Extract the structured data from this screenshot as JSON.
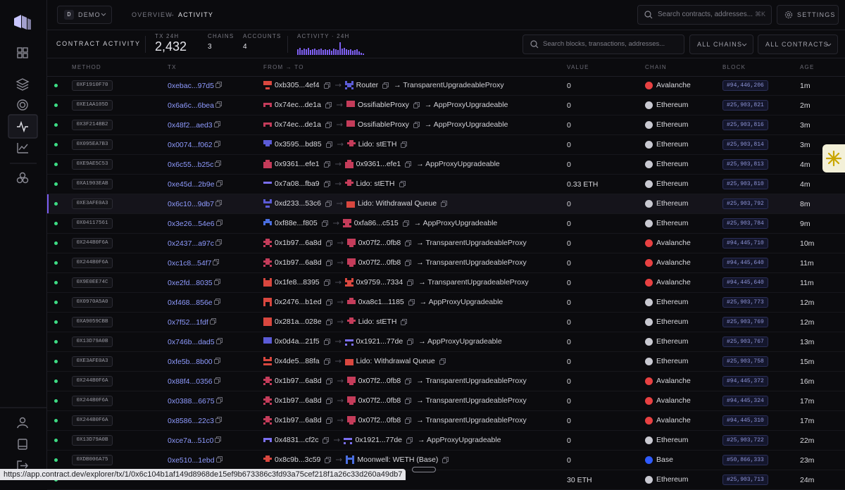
{
  "topbar": {
    "workspace_initial": "D",
    "workspace": "DEMO",
    "breadcrumb_parent": "OVERVIEW",
    "breadcrumb_separator": "→",
    "breadcrumb_current": "ACTIVITY",
    "search_placeholder": "Search contracts, addresses...",
    "shortcut": "⌘K",
    "settings": "SETTINGS"
  },
  "summary": {
    "title": "CONTRACT ACTIVITY",
    "stats": [
      {
        "label": "TX 24H",
        "value": "2,432"
      },
      {
        "label": "CHAINS",
        "value": "3"
      },
      {
        "label": "ACCOUNTS",
        "value": "4"
      }
    ],
    "activity_label": "ACTIVITY · 24H",
    "search_placeholder": "Search blocks, transactions, addresses...",
    "filters": [
      "ALL CHAINS",
      "ALL CONTRACTS"
    ]
  },
  "table": {
    "columns": [
      "METHOD",
      "TX",
      "FROM → TO",
      "VALUE",
      "CHAIN",
      "BLOCK",
      "AGE"
    ],
    "rows": [
      {
        "method": "0XF1910F70",
        "tx": "0xebac...97d5",
        "from": "0xb305...4ef4",
        "to": "Router",
        "to_note": "→ TransparentUpgradeableProxy",
        "value": "0",
        "chain": "Avalanche",
        "chain_color": "#e84142",
        "block": "#94,446,206",
        "age": "1m"
      },
      {
        "method": "0XE1AA105D",
        "tx": "0x6a6c...6bea",
        "from": "0x74ec...de1a",
        "to": "OssifiableProxy",
        "to_note": "→ AppProxyUpgradeable",
        "value": "0",
        "chain": "Ethereum",
        "chain_color": "#c9c9d1",
        "block": "#25,903,821",
        "age": "2m"
      },
      {
        "method": "0X3F214BB2",
        "tx": "0x48f2...aed3",
        "from": "0x74ec...de1a",
        "to": "OssifiableProxy",
        "to_note": "→ AppProxyUpgradeable",
        "value": "0",
        "chain": "Ethereum",
        "chain_color": "#c9c9d1",
        "block": "#25,903,816",
        "age": "3m"
      },
      {
        "method": "0X095EA7B3",
        "tx": "0x0074...f062",
        "from": "0x3595...bd85",
        "to": "Lido: stETH",
        "value": "0",
        "chain": "Ethereum",
        "chain_color": "#c9c9d1",
        "block": "#25,903,814",
        "age": "3m"
      },
      {
        "method": "0XE9AE5C53",
        "tx": "0x6c55...b25c",
        "from": "0x9361...efe1",
        "to": "0x9361...efe1",
        "to_note": "→ AppProxyUpgradeable",
        "value": "0",
        "chain": "Ethereum",
        "chain_color": "#c9c9d1",
        "block": "#25,903,813",
        "age": "4m"
      },
      {
        "method": "0XA1903EAB",
        "tx": "0xe45d...2b9e",
        "from": "0x7a08...fba9",
        "to": "Lido: stETH",
        "value": "0.33 ETH",
        "chain": "Ethereum",
        "chain_color": "#c9c9d1",
        "block": "#25,903,810",
        "age": "4m"
      },
      {
        "method": "0XE3AFE0A3",
        "tx": "0x6c10...9db7",
        "from": "0xd233...53c6",
        "to": "Lido: Withdrawal Queue",
        "value": "0",
        "chain": "Ethereum",
        "chain_color": "#c9c9d1",
        "block": "#25,903,792",
        "age": "8m",
        "selected": true
      },
      {
        "method": "0X04117561",
        "tx": "0x3e26...54e6",
        "from": "0xf88e...f805",
        "to": "0xfa86...c515",
        "to_note": "→ AppProxyUpgradeable",
        "value": "0",
        "chain": "Ethereum",
        "chain_color": "#c9c9d1",
        "block": "#25,903,784",
        "age": "9m"
      },
      {
        "method": "0X244B0F6A",
        "tx": "0x2437...a97c",
        "from": "0x1b97...6a8d",
        "to": "0x07f2...0fb8",
        "to_note": "→ TransparentUpgradeableProxy",
        "value": "0",
        "chain": "Avalanche",
        "chain_color": "#e84142",
        "block": "#94,445,710",
        "age": "10m"
      },
      {
        "method": "0X244B0F6A",
        "tx": "0xc1c8...54f7",
        "from": "0x1b97...6a8d",
        "to": "0x07f2...0fb8",
        "to_note": "→ TransparentUpgradeableProxy",
        "value": "0",
        "chain": "Avalanche",
        "chain_color": "#e84142",
        "block": "#94,445,640",
        "age": "11m"
      },
      {
        "method": "0X9E0EE74C",
        "tx": "0xe2fd...8035",
        "from": "0x1fe8...8395",
        "to": "0x9759...7334",
        "to_note": "→ TransparentUpgradeableProxy",
        "value": "0",
        "chain": "Avalanche",
        "chain_color": "#e84142",
        "block": "#94,445,640",
        "age": "11m"
      },
      {
        "method": "0X0970A5A0",
        "tx": "0xf468...856e",
        "from": "0x2476...b1ed",
        "to": "0xa8c1...1185",
        "to_note": "→ AppProxyUpgradeable",
        "value": "0",
        "chain": "Ethereum",
        "chain_color": "#c9c9d1",
        "block": "#25,903,773",
        "age": "12m"
      },
      {
        "method": "0XA9059CBB",
        "tx": "0x7f52...1fdf",
        "from": "0x281a...028e",
        "to": "Lido: stETH",
        "value": "0",
        "chain": "Ethereum",
        "chain_color": "#c9c9d1",
        "block": "#25,903,769",
        "age": "12m"
      },
      {
        "method": "0X13D79A0B",
        "tx": "0x746b...dad5",
        "from": "0x0d4a...21f5",
        "to": "0x1921...77de",
        "to_note": "→ AppProxyUpgradeable",
        "value": "0",
        "chain": "Ethereum",
        "chain_color": "#c9c9d1",
        "block": "#25,903,767",
        "age": "13m"
      },
      {
        "method": "0XE3AFE0A3",
        "tx": "0xfe5b...8b00",
        "from": "0x4de5...88fa",
        "to": "Lido: Withdrawal Queue",
        "value": "0",
        "chain": "Ethereum",
        "chain_color": "#c9c9d1",
        "block": "#25,903,758",
        "age": "15m"
      },
      {
        "method": "0X244B0F6A",
        "tx": "0x88f4...0356",
        "from": "0x1b97...6a8d",
        "to": "0x07f2...0fb8",
        "to_note": "→ TransparentUpgradeableProxy",
        "value": "0",
        "chain": "Avalanche",
        "chain_color": "#e84142",
        "block": "#94,445,372",
        "age": "16m"
      },
      {
        "method": "0X244B0F6A",
        "tx": "0x0388...6675",
        "from": "0x1b97...6a8d",
        "to": "0x07f2...0fb8",
        "to_note": "→ TransparentUpgradeableProxy",
        "value": "0",
        "chain": "Avalanche",
        "chain_color": "#e84142",
        "block": "#94,445,324",
        "age": "17m"
      },
      {
        "method": "0X244B0F6A",
        "tx": "0x8586...22c3",
        "from": "0x1b97...6a8d",
        "to": "0x07f2...0fb8",
        "to_note": "→ TransparentUpgradeableProxy",
        "value": "0",
        "chain": "Avalanche",
        "chain_color": "#e84142",
        "block": "#94,445,310",
        "age": "17m"
      },
      {
        "method": "0X13D79A0B",
        "tx": "0xce7a...51c0",
        "from": "0x4831...cf2c",
        "to": "0x1921...77de",
        "to_note": "→ AppProxyUpgradeable",
        "value": "0",
        "chain": "Ethereum",
        "chain_color": "#c9c9d1",
        "block": "#25,903,722",
        "age": "22m"
      },
      {
        "method": "0XDB006A75",
        "tx": "0xe510...1ebd",
        "from": "0x8c9b...3c59",
        "to": "Moonwell: WETH (Base)",
        "value": "0",
        "chain": "Base",
        "chain_color": "#2f5bff",
        "block": "#50,866,333",
        "age": "23m"
      },
      {
        "value": "30 ETH",
        "chain": "Ethereum",
        "chain_color": "#c9c9d1",
        "block": "#25,903,713",
        "age": "24m"
      }
    ]
  },
  "status_url": "https://app.contract.dev/explorer/tx/1/0x6c104b1af149d8968de15ef9b673386c3fd93a75cef218f1a26c33d260a49db7"
}
